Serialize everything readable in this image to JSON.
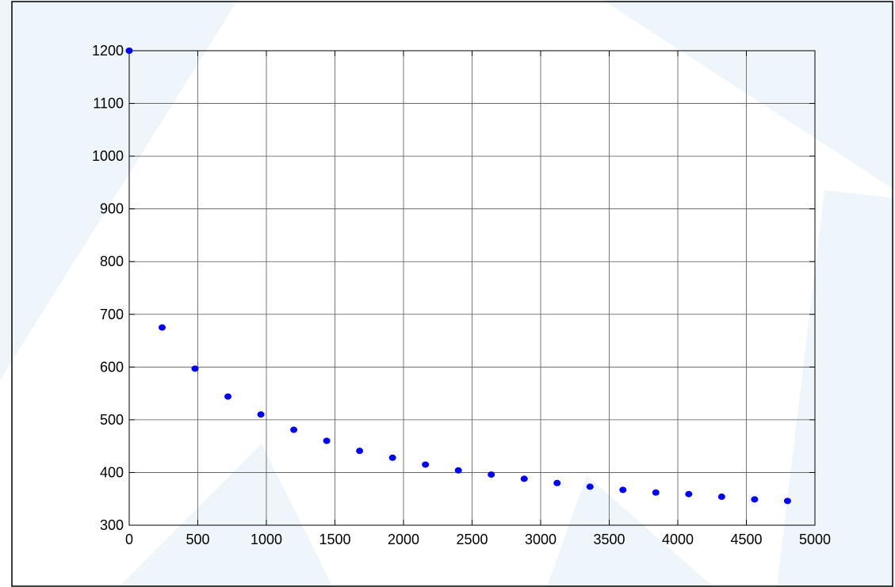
{
  "colors": {
    "background": "#ffffff",
    "watermark": "#eef5fb",
    "frame": "#000000",
    "grid": "#555555",
    "marker": "#0000ff"
  },
  "chart_data": {
    "type": "scatter",
    "title": "",
    "xlabel": "",
    "ylabel": "",
    "grid": true,
    "xlim": [
      0,
      5000
    ],
    "ylim": [
      300,
      1200
    ],
    "x_ticks": [
      0,
      500,
      1000,
      1500,
      2000,
      2500,
      3000,
      3500,
      4000,
      4500,
      5000
    ],
    "y_ticks": [
      300,
      400,
      500,
      600,
      700,
      800,
      900,
      1000,
      1100,
      1200
    ],
    "x_tick_labels": [
      "0",
      "500",
      "1000",
      "1500",
      "2000",
      "2500",
      "3000",
      "3500",
      "4000",
      "4500",
      "5000"
    ],
    "y_tick_labels": [
      "300",
      "400",
      "500",
      "600",
      "700",
      "800",
      "900",
      "1000",
      "1100",
      "1200"
    ],
    "series": [
      {
        "x": [
          0,
          240,
          480,
          720,
          960,
          1200,
          1440,
          1680,
          1920,
          2160,
          2400,
          2640,
          2880,
          3120,
          3360,
          3600,
          3840,
          4080,
          4320,
          4560,
          4800
        ],
        "y": [
          1200,
          675,
          597,
          544,
          510,
          481,
          460,
          441,
          428,
          415,
          404,
          396,
          388,
          380,
          373,
          367,
          362,
          359,
          354,
          349,
          346
        ],
        "color": "#0000ff",
        "marker": "dot"
      }
    ]
  }
}
